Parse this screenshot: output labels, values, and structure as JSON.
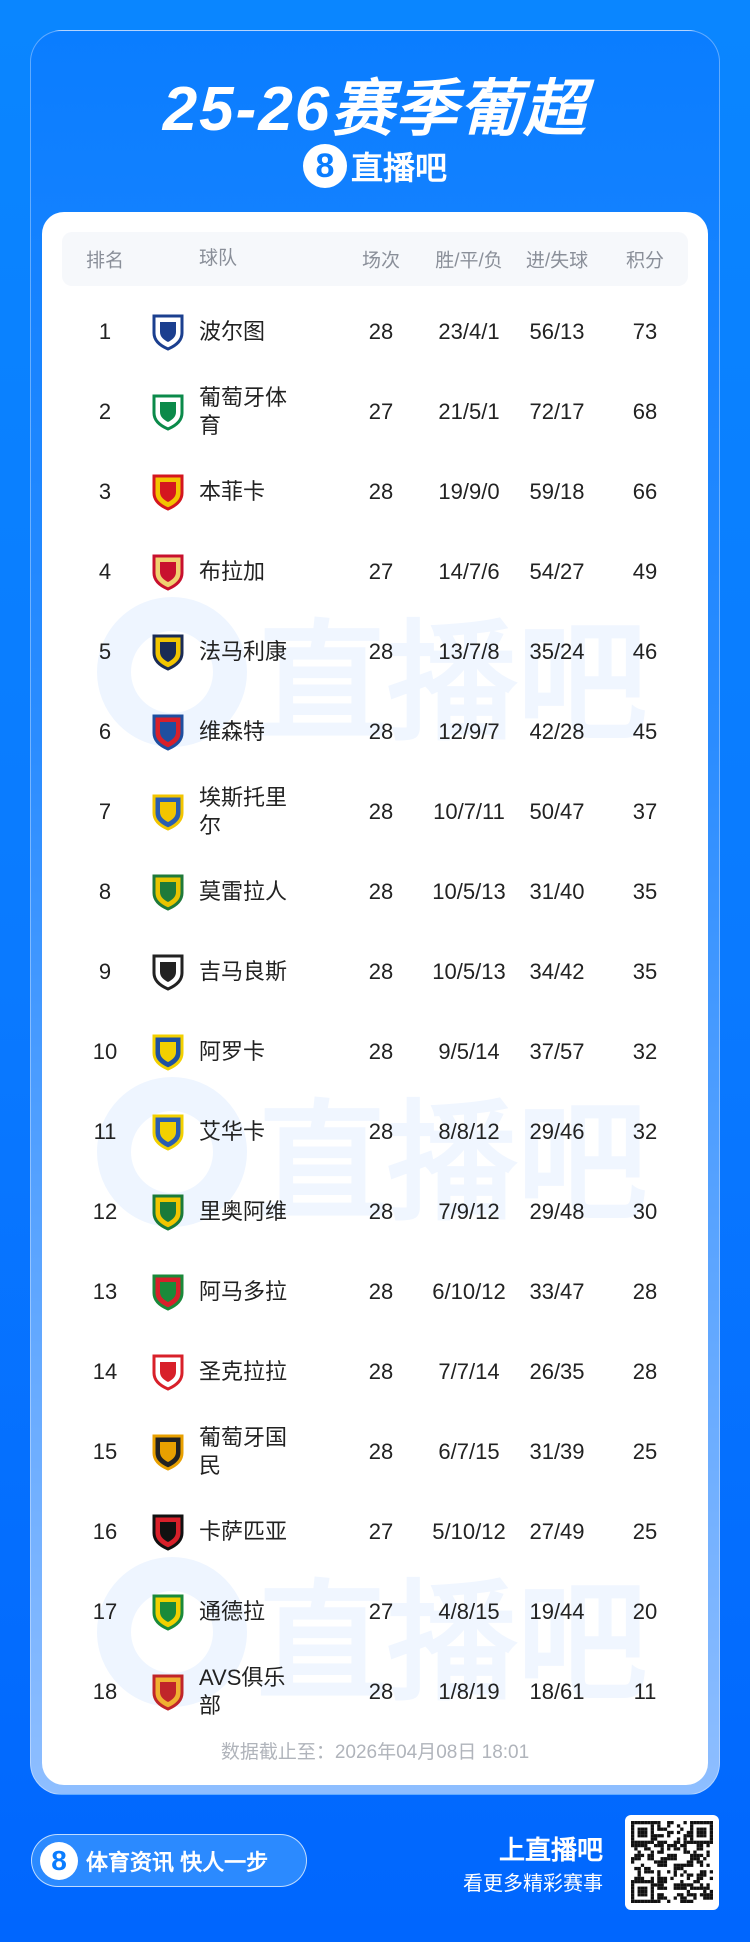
{
  "title": "25-26赛季葡超",
  "brand": {
    "mark": "8",
    "name": "直播吧"
  },
  "table": {
    "headers": {
      "rank": "排名",
      "team": "球队",
      "played": "场次",
      "wdl": "胜/平/负",
      "goals": "进/失球",
      "points": "积分"
    },
    "rows": [
      {
        "rank": "1",
        "team": "波尔图",
        "played": "28",
        "wdl": "23/4/1",
        "goals": "56/13",
        "points": "73",
        "color": "#1b3f8f",
        "color2": "#ffffff"
      },
      {
        "rank": "2",
        "team": "葡萄牙体育",
        "played": "27",
        "wdl": "21/5/1",
        "goals": "72/17",
        "points": "68",
        "color": "#0b8a4a",
        "color2": "#ffffff"
      },
      {
        "rank": "3",
        "team": "本菲卡",
        "played": "28",
        "wdl": "19/9/0",
        "goals": "59/18",
        "points": "66",
        "color": "#d4161f",
        "color2": "#f3c300"
      },
      {
        "rank": "4",
        "team": "布拉加",
        "played": "27",
        "wdl": "14/7/6",
        "goals": "54/27",
        "points": "49",
        "color": "#c8102e",
        "color2": "#f0d070"
      },
      {
        "rank": "5",
        "team": "法马利康",
        "played": "28",
        "wdl": "13/7/8",
        "goals": "35/24",
        "points": "46",
        "color": "#1a2b55",
        "color2": "#f2c500"
      },
      {
        "rank": "6",
        "team": "维森特",
        "played": "28",
        "wdl": "12/9/7",
        "goals": "42/28",
        "points": "45",
        "color": "#1e4fa0",
        "color2": "#d8202a"
      },
      {
        "rank": "7",
        "team": "埃斯托里尔",
        "played": "28",
        "wdl": "10/7/11",
        "goals": "50/47",
        "points": "37",
        "color": "#f2c500",
        "color2": "#2a5db0"
      },
      {
        "rank": "8",
        "team": "莫雷拉人",
        "played": "28",
        "wdl": "10/5/13",
        "goals": "31/40",
        "points": "35",
        "color": "#1f7a3a",
        "color2": "#e8c400"
      },
      {
        "rank": "9",
        "team": "吉马良斯",
        "played": "28",
        "wdl": "10/5/13",
        "goals": "34/42",
        "points": "35",
        "color": "#222222",
        "color2": "#ffffff"
      },
      {
        "rank": "10",
        "team": "阿罗卡",
        "played": "28",
        "wdl": "9/5/14",
        "goals": "37/57",
        "points": "32",
        "color": "#f2d000",
        "color2": "#1e50a0"
      },
      {
        "rank": "11",
        "team": "艾华卡",
        "played": "28",
        "wdl": "8/8/12",
        "goals": "29/46",
        "points": "32",
        "color": "#f2d000",
        "color2": "#2a5db0"
      },
      {
        "rank": "12",
        "team": "里奥阿维",
        "played": "28",
        "wdl": "7/9/12",
        "goals": "29/48",
        "points": "30",
        "color": "#1a7a3a",
        "color2": "#f2c500"
      },
      {
        "rank": "13",
        "team": "阿马多拉",
        "played": "28",
        "wdl": "6/10/12",
        "goals": "33/47",
        "points": "28",
        "color": "#1a8a3a",
        "color2": "#d8202a"
      },
      {
        "rank": "14",
        "team": "圣克拉拉",
        "played": "28",
        "wdl": "7/7/14",
        "goals": "26/35",
        "points": "28",
        "color": "#d8202a",
        "color2": "#ffffff"
      },
      {
        "rank": "15",
        "team": "葡萄牙国民",
        "played": "28",
        "wdl": "6/7/15",
        "goals": "31/39",
        "points": "25",
        "color": "#e8a000",
        "color2": "#222222"
      },
      {
        "rank": "16",
        "team": "卡萨匹亚",
        "played": "27",
        "wdl": "5/10/12",
        "goals": "27/49",
        "points": "25",
        "color": "#111111",
        "color2": "#d8202a"
      },
      {
        "rank": "17",
        "team": "通德拉",
        "played": "27",
        "wdl": "4/8/15",
        "goals": "19/44",
        "points": "20",
        "color": "#1a8a3a",
        "color2": "#f2d000"
      },
      {
        "rank": "18",
        "team": "AVS俱乐部",
        "played": "28",
        "wdl": "1/8/19",
        "goals": "18/61",
        "points": "11",
        "color": "#c0252a",
        "color2": "#f0b030"
      }
    ]
  },
  "footer_note": "数据截止至：2026年04月08日 18:01",
  "bottom": {
    "slogan": "体育资讯 快人一步",
    "cta_title": "上直播吧",
    "cta_sub": "看更多精彩赛事"
  },
  "colors": {
    "background": "#0a7aff",
    "accent": "#0a7dff"
  }
}
